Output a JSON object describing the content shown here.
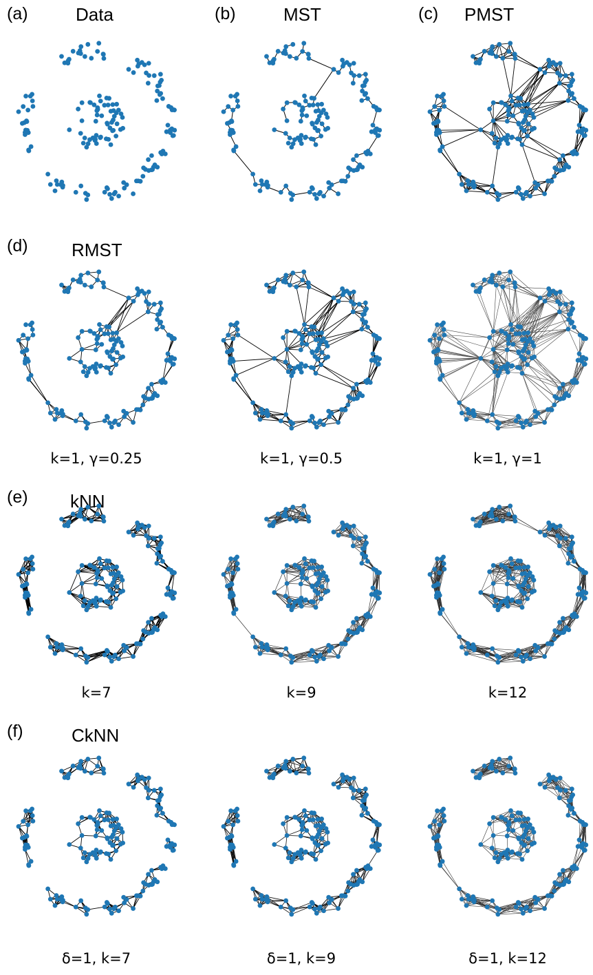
{
  "rows": [
    {
      "label": "(a)",
      "method": "Data",
      "panels": [
        {
          "title": "Data",
          "style": "points"
        },
        {
          "title": "MST",
          "style": "mst"
        },
        {
          "title": "PMST",
          "style": "pmst"
        }
      ],
      "extra_labels": [
        "(b)",
        "(c)"
      ]
    },
    {
      "label": "(d)",
      "method": "RMST",
      "panels": [
        {
          "caption": "k=1, γ=0.25",
          "style": "rmst1"
        },
        {
          "caption": "k=1, γ=0.5",
          "style": "rmst2"
        },
        {
          "caption": "k=1, γ=1",
          "style": "rmst3"
        }
      ]
    },
    {
      "label": "(e)",
      "method": "kNN",
      "panels": [
        {
          "caption": "k=7",
          "style": "knn7"
        },
        {
          "caption": "k=9",
          "style": "knn9"
        },
        {
          "caption": "k=12",
          "style": "knn12"
        }
      ]
    },
    {
      "label": "(f)",
      "method": "CkNN",
      "panels": [
        {
          "caption": "δ=1, k=7",
          "style": "ck7"
        },
        {
          "caption": "δ=1, k=9",
          "style": "ck9"
        },
        {
          "caption": "δ=1, k=12",
          "style": "ck12"
        }
      ]
    }
  ],
  "colors": {
    "node": "#1f77b4",
    "edge": "#000000",
    "edge_light": "#555555"
  }
}
